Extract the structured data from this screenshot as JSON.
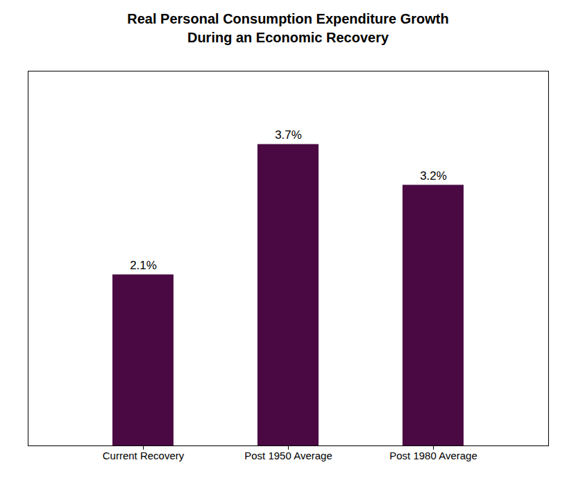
{
  "chart_data": {
    "type": "bar",
    "title": "Real Personal Consumption Expenditure Growth\nDuring an Economic Recovery",
    "categories": [
      "Current Recovery",
      "Post 1950 Average",
      "Post 1980 Average"
    ],
    "values": [
      2.1,
      3.7,
      3.2
    ],
    "value_labels": [
      "2.1%",
      "3.7%",
      "3.2%"
    ],
    "color": "#4a0942",
    "ylim": [
      0,
      4.6
    ],
    "data_labels": true,
    "tick_labels": "x",
    "grid": false
  }
}
